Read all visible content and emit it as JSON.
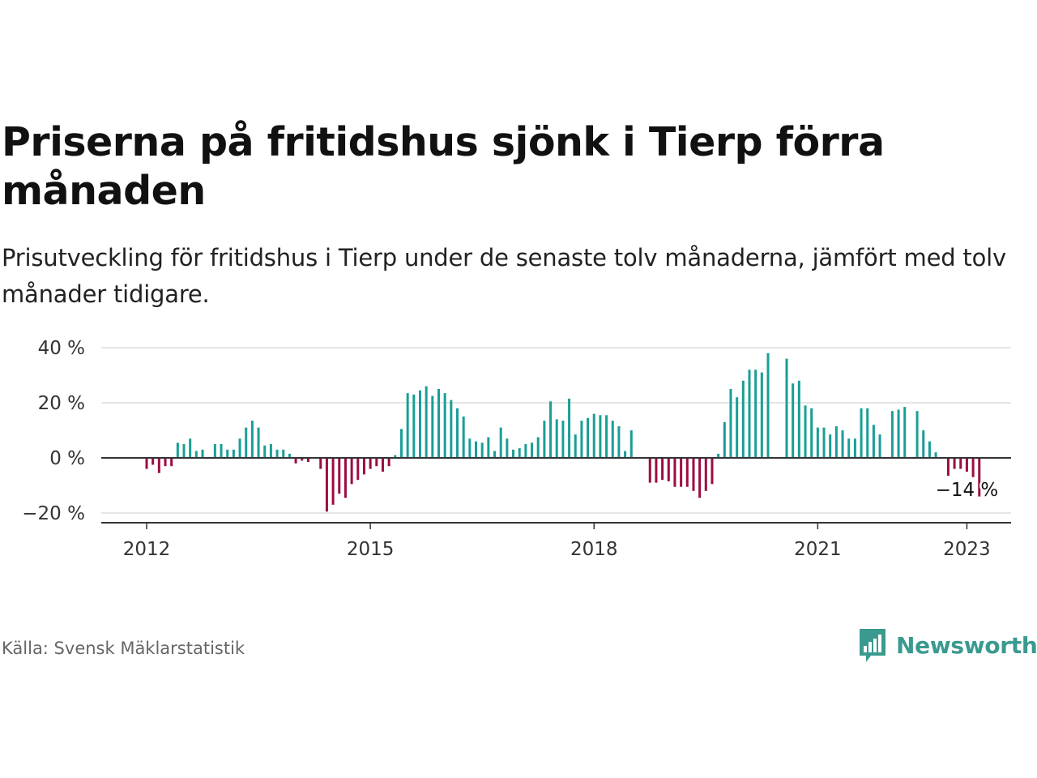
{
  "header": {
    "title": "Priserna på fritidshus sjönk i Tierp förra månaden",
    "subtitle": "Prisutveckling för fritidshus i Tierp under de senaste tolv månaderna, jämfört med tolv månader tidigare."
  },
  "footer": {
    "source": "Källa: Svensk Mäklarstatistik",
    "brand": "Newsworthy",
    "brand_icon": "bar-chart-speech-bubble-icon"
  },
  "colors": {
    "positive": "#1a9e96",
    "negative": "#9c0c43",
    "brand": "#3a9a8f"
  },
  "chart_data": {
    "type": "bar",
    "title": "Priserna på fritidshus sjönk i Tierp förra månaden",
    "xlabel": "",
    "ylabel": "",
    "ylim": [
      -23,
      40
    ],
    "y_ticks": [
      -20,
      0,
      20,
      40
    ],
    "y_tick_labels": [
      "−20 %",
      "0 %",
      "20 %",
      "40 %"
    ],
    "x_ticks": [
      {
        "label": "2012",
        "month_index": 0
      },
      {
        "label": "2015",
        "month_index": 36
      },
      {
        "label": "2018",
        "month_index": 72
      },
      {
        "label": "2021",
        "month_index": 108
      },
      {
        "label": "2023",
        "month_index": 132
      }
    ],
    "start_month": "2012-01",
    "grid": true,
    "legend": "none",
    "annotation": {
      "text": "−14 %",
      "month_index": 132
    },
    "values": [
      -4,
      -2.5,
      -5.5,
      -3,
      -3,
      5.5,
      5,
      7,
      2.5,
      3,
      null,
      5,
      5,
      3,
      3,
      7,
      11,
      13.5,
      11,
      4.5,
      5,
      3,
      3,
      1.5,
      -2,
      -1,
      -1.5,
      null,
      -4,
      -19.5,
      -17,
      -13,
      -14.5,
      -9.5,
      -8,
      -6,
      -4,
      -3,
      -5,
      -3,
      1,
      10.5,
      23.5,
      23,
      24.5,
      26,
      22.5,
      25,
      23.5,
      21,
      18,
      15,
      7,
      6,
      5.5,
      7.5,
      2.5,
      11,
      7,
      3,
      3.5,
      5,
      5.5,
      7.5,
      13.5,
      20.5,
      14,
      13.5,
      21.5,
      8.5,
      13.5,
      14.5,
      16,
      15.5,
      15.5,
      13.5,
      11.5,
      2.5,
      10,
      null,
      null,
      -9,
      -9,
      -8,
      -8.5,
      -10.5,
      -10.5,
      -10.5,
      -12,
      -14.5,
      -12,
      -9.5,
      1.5,
      13,
      25,
      22,
      28,
      32,
      32,
      31,
      38,
      null,
      null,
      36,
      27,
      28,
      19,
      18,
      11,
      11,
      8.5,
      11.5,
      10,
      7,
      7,
      18,
      18,
      12,
      8.5,
      null,
      17,
      17.5,
      18.5,
      null,
      17,
      10,
      6,
      2,
      null,
      -6.5,
      -4,
      -4,
      -5,
      -7,
      -14
    ]
  }
}
